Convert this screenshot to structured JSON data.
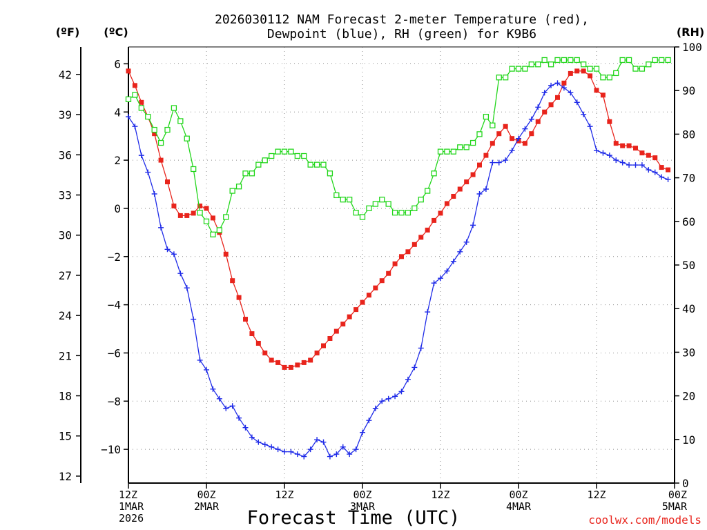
{
  "chart_data": {
    "type": "line",
    "title_line1": "2026030112 NAM Forecast 2-meter Temperature (red),",
    "title_line2": "Dewpoint (blue), RH (green) for K9B6",
    "unit_f": "(ºF)",
    "unit_c": "(ºC)",
    "unit_rh": "(RH)",
    "xlabel": "Forecast Time (UTC)",
    "credit": "coolwx.com/models",
    "hours_total": 84,
    "ylim_c": [
      -11.4,
      6.7
    ],
    "ylim_rh": [
      0,
      100
    ],
    "c_ticks": [
      6,
      4,
      2,
      0,
      -2,
      -4,
      -6,
      -8,
      -10
    ],
    "c_tick_labels": [
      "6",
      "4",
      "2",
      "0",
      "−2",
      "−4",
      "−6",
      "−8",
      "−10"
    ],
    "f_ticks": [
      42,
      39,
      36,
      33,
      30,
      27,
      24,
      21,
      18,
      15,
      12
    ],
    "rh_ticks": [
      100,
      90,
      80,
      70,
      60,
      50,
      40,
      30,
      20,
      10,
      0
    ],
    "x_ticks": [
      {
        "hour": 0,
        "lines": [
          "12Z",
          "1MAR",
          "2026"
        ]
      },
      {
        "hour": 12,
        "lines": [
          "00Z",
          "2MAR"
        ]
      },
      {
        "hour": 24,
        "lines": [
          "12Z"
        ]
      },
      {
        "hour": 36,
        "lines": [
          "00Z",
          "3MAR"
        ]
      },
      {
        "hour": 48,
        "lines": [
          "12Z"
        ]
      },
      {
        "hour": 60,
        "lines": [
          "00Z",
          "4MAR"
        ]
      },
      {
        "hour": 72,
        "lines": [
          "12Z"
        ]
      },
      {
        "hour": 84,
        "lines": [
          "00Z",
          "5MAR"
        ]
      }
    ],
    "series": [
      {
        "name": "Temperature",
        "color": "#e8241c",
        "units": "C",
        "marker": "filled-square",
        "values": [
          5.7,
          5.1,
          4.4,
          3.8,
          3.1,
          2.0,
          1.1,
          0.1,
          -0.3,
          -0.3,
          -0.2,
          0.1,
          0.0,
          -0.4,
          -1.0,
          -1.9,
          -3.0,
          -3.7,
          -4.6,
          -5.2,
          -5.6,
          -6.0,
          -6.3,
          -6.4,
          -6.6,
          -6.6,
          -6.5,
          -6.4,
          -6.3,
          -6.0,
          -5.7,
          -5.4,
          -5.1,
          -4.8,
          -4.5,
          -4.2,
          -3.9,
          -3.6,
          -3.3,
          -3.0,
          -2.7,
          -2.3,
          -2.0,
          -1.8,
          -1.5,
          -1.2,
          -0.9,
          -0.5,
          -0.2,
          0.2,
          0.5,
          0.8,
          1.1,
          1.4,
          1.8,
          2.2,
          2.7,
          3.1,
          3.4,
          2.9,
          2.8,
          2.7,
          3.1,
          3.6,
          4.0,
          4.3,
          4.6,
          5.2,
          5.6,
          5.7,
          5.7,
          5.5,
          4.9,
          4.7,
          3.6,
          2.7,
          2.6,
          2.6,
          2.5,
          2.3,
          2.2,
          2.1,
          1.7,
          1.6
        ]
      },
      {
        "name": "Dewpoint",
        "color": "#1f2be8",
        "units": "C",
        "marker": "plus",
        "values": [
          3.8,
          3.4,
          2.2,
          1.5,
          0.6,
          -0.8,
          -1.7,
          -1.9,
          -2.7,
          -3.3,
          -4.6,
          -6.3,
          -6.7,
          -7.5,
          -7.9,
          -8.3,
          -8.2,
          -8.7,
          -9.1,
          -9.5,
          -9.7,
          -9.8,
          -9.9,
          -10.0,
          -10.1,
          -10.1,
          -10.2,
          -10.3,
          -10.0,
          -9.6,
          -9.7,
          -10.3,
          -10.2,
          -9.9,
          -10.2,
          -10.0,
          -9.3,
          -8.8,
          -8.3,
          -8.0,
          -7.9,
          -7.8,
          -7.6,
          -7.1,
          -6.6,
          -5.8,
          -4.3,
          -3.1,
          -2.9,
          -2.6,
          -2.2,
          -1.8,
          -1.4,
          -0.7,
          0.6,
          0.8,
          1.9,
          1.9,
          2.0,
          2.4,
          2.9,
          3.3,
          3.7,
          4.2,
          4.8,
          5.1,
          5.2,
          5.0,
          4.8,
          4.4,
          3.9,
          3.4,
          2.4,
          2.3,
          2.2,
          2.0,
          1.9,
          1.8,
          1.8,
          1.8,
          1.6,
          1.5,
          1.3,
          1.2
        ]
      },
      {
        "name": "RH",
        "color": "#22d61b",
        "units": "%",
        "marker": "open-square",
        "values": [
          88,
          89,
          86,
          84,
          81,
          78,
          81,
          86,
          83,
          79,
          72,
          62,
          60,
          57,
          58,
          61,
          67,
          68,
          71,
          71,
          73,
          74,
          75,
          76,
          76,
          76,
          75,
          75,
          73,
          73,
          73,
          71,
          66,
          65,
          65,
          62,
          61,
          63,
          64,
          65,
          64,
          62,
          62,
          62,
          63,
          65,
          67,
          71,
          76,
          76,
          76,
          77,
          77,
          78,
          80,
          84,
          82,
          93,
          93,
          95,
          95,
          95,
          96,
          96,
          97,
          96,
          97,
          97,
          97,
          97,
          96,
          95,
          95,
          93,
          93,
          94,
          97,
          97,
          95,
          95,
          96,
          97,
          97,
          97
        ]
      }
    ]
  }
}
